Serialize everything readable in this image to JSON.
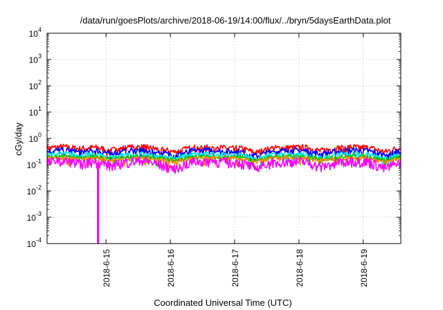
{
  "chart_data": {
    "type": "line",
    "title": "/data/run/goesPlots/archive/2018-06-19/14:00/flux/../bryn/5daysEarthData.plot",
    "xlabel": "Coordinated Universal Time (UTC)",
    "ylabel": "cGy/day",
    "y_scale": "log",
    "ylim": [
      0.0001,
      10000
    ],
    "y_ticks": [
      {
        "value": 0.0001,
        "base": "10",
        "exp": "-4"
      },
      {
        "value": 0.001,
        "base": "10",
        "exp": "-3"
      },
      {
        "value": 0.01,
        "base": "10",
        "exp": "-2"
      },
      {
        "value": 0.1,
        "base": "10",
        "exp": "-1"
      },
      {
        "value": 1,
        "base": "10",
        "exp": "0"
      },
      {
        "value": 10,
        "base": "10",
        "exp": "1"
      },
      {
        "value": 100,
        "base": "10",
        "exp": "2"
      },
      {
        "value": 1000,
        "base": "10",
        "exp": "3"
      },
      {
        "value": 10000,
        "base": "10",
        "exp": "4"
      }
    ],
    "xlim": [
      "2018-06-14 02:00",
      "2018-06-19 14:00"
    ],
    "x_ticks": [
      {
        "value": "2018-06-15 00:00",
        "label": "2018-6-15"
      },
      {
        "value": "2018-06-16 00:00",
        "label": "2018-6-16"
      },
      {
        "value": "2018-06-17 00:00",
        "label": "2018-6-17"
      },
      {
        "value": "2018-06-18 00:00",
        "label": "2018-6-18"
      },
      {
        "value": "2018-06-19 00:00",
        "label": "2018-6-19"
      }
    ],
    "grid": true,
    "series": [
      {
        "color": "#ff0000",
        "level": 0.4,
        "spread": 0.3,
        "x": [
          "2018-06-14 02:00",
          "2018-06-14 08:00",
          "2018-06-14 14:00",
          "2018-06-14 20:00",
          "2018-06-15 02:00",
          "2018-06-15 08:00",
          "2018-06-15 14:00",
          "2018-06-15 20:00",
          "2018-06-16 02:00",
          "2018-06-16 08:00",
          "2018-06-16 14:00",
          "2018-06-16 20:00",
          "2018-06-17 02:00",
          "2018-06-17 08:00",
          "2018-06-17 14:00",
          "2018-06-17 20:00",
          "2018-06-18 02:00",
          "2018-06-18 08:00",
          "2018-06-18 14:00",
          "2018-06-18 20:00",
          "2018-06-19 02:00",
          "2018-06-19 08:00",
          "2018-06-19 14:00"
        ],
        "values": [
          0.42,
          0.48,
          0.4,
          0.45,
          0.35,
          0.44,
          0.47,
          0.38,
          0.3,
          0.44,
          0.46,
          0.43,
          0.42,
          0.28,
          0.42,
          0.44,
          0.45,
          0.33,
          0.42,
          0.47,
          0.44,
          0.3,
          0.45
        ]
      },
      {
        "color": "#0000ff",
        "level": 0.3,
        "spread": 0.3,
        "x": [
          "2018-06-14 02:00",
          "2018-06-14 08:00",
          "2018-06-14 14:00",
          "2018-06-14 20:00",
          "2018-06-15 02:00",
          "2018-06-15 08:00",
          "2018-06-15 14:00",
          "2018-06-15 20:00",
          "2018-06-16 02:00",
          "2018-06-16 08:00",
          "2018-06-16 14:00",
          "2018-06-16 20:00",
          "2018-06-17 02:00",
          "2018-06-17 08:00",
          "2018-06-17 14:00",
          "2018-06-17 20:00",
          "2018-06-18 02:00",
          "2018-06-18 08:00",
          "2018-06-18 14:00",
          "2018-06-18 20:00",
          "2018-06-19 02:00",
          "2018-06-19 08:00",
          "2018-06-19 14:00"
        ],
        "values": [
          0.32,
          0.36,
          0.3,
          0.34,
          0.26,
          0.33,
          0.35,
          0.28,
          0.22,
          0.33,
          0.35,
          0.32,
          0.31,
          0.21,
          0.31,
          0.33,
          0.34,
          0.25,
          0.31,
          0.35,
          0.33,
          0.22,
          0.34
        ]
      },
      {
        "color": "#00e5ee",
        "level": 0.22,
        "spread": 0.25,
        "x": [
          "2018-06-14 02:00",
          "2018-06-14 08:00",
          "2018-06-14 14:00",
          "2018-06-14 20:00",
          "2018-06-15 02:00",
          "2018-06-15 08:00",
          "2018-06-15 14:00",
          "2018-06-15 20:00",
          "2018-06-16 02:00",
          "2018-06-16 08:00",
          "2018-06-16 14:00",
          "2018-06-16 20:00",
          "2018-06-17 02:00",
          "2018-06-17 08:00",
          "2018-06-17 14:00",
          "2018-06-17 20:00",
          "2018-06-18 02:00",
          "2018-06-18 08:00",
          "2018-06-18 14:00",
          "2018-06-18 20:00",
          "2018-06-19 02:00",
          "2018-06-19 08:00",
          "2018-06-19 14:00"
        ],
        "values": [
          0.23,
          0.26,
          0.22,
          0.25,
          0.19,
          0.24,
          0.25,
          0.2,
          0.17,
          0.24,
          0.25,
          0.23,
          0.23,
          0.16,
          0.23,
          0.24,
          0.25,
          0.18,
          0.23,
          0.26,
          0.24,
          0.16,
          0.25
        ]
      },
      {
        "color": "#00bb00",
        "level": 0.19,
        "spread": 0.2,
        "x": [
          "2018-06-14 02:00",
          "2018-06-14 08:00",
          "2018-06-14 14:00",
          "2018-06-14 20:00",
          "2018-06-15 02:00",
          "2018-06-15 08:00",
          "2018-06-15 14:00",
          "2018-06-15 20:00",
          "2018-06-16 02:00",
          "2018-06-16 08:00",
          "2018-06-16 14:00",
          "2018-06-16 20:00",
          "2018-06-17 02:00",
          "2018-06-17 08:00",
          "2018-06-17 14:00",
          "2018-06-17 20:00",
          "2018-06-18 02:00",
          "2018-06-18 08:00",
          "2018-06-18 14:00",
          "2018-06-18 20:00",
          "2018-06-19 02:00",
          "2018-06-19 08:00",
          "2018-06-19 14:00"
        ],
        "values": [
          0.19,
          0.21,
          0.18,
          0.2,
          0.16,
          0.19,
          0.2,
          0.17,
          0.15,
          0.19,
          0.2,
          0.19,
          0.19,
          0.14,
          0.19,
          0.2,
          0.2,
          0.16,
          0.19,
          0.21,
          0.2,
          0.14,
          0.2
        ]
      },
      {
        "color": "#ff8800",
        "level": 0.17,
        "spread": 0.2,
        "x": [
          "2018-06-14 02:00",
          "2018-06-14 08:00",
          "2018-06-14 14:00",
          "2018-06-14 20:00",
          "2018-06-15 02:00",
          "2018-06-15 08:00",
          "2018-06-15 14:00",
          "2018-06-15 20:00",
          "2018-06-16 02:00",
          "2018-06-16 08:00",
          "2018-06-16 14:00",
          "2018-06-16 20:00",
          "2018-06-17 02:00",
          "2018-06-17 08:00",
          "2018-06-17 14:00",
          "2018-06-17 20:00",
          "2018-06-18 02:00",
          "2018-06-18 08:00",
          "2018-06-18 14:00",
          "2018-06-18 20:00",
          "2018-06-19 02:00",
          "2018-06-19 08:00",
          "2018-06-19 14:00"
        ],
        "values": [
          0.17,
          0.18,
          0.16,
          0.18,
          0.14,
          0.17,
          0.18,
          0.15,
          0.13,
          0.17,
          0.18,
          0.17,
          0.17,
          0.12,
          0.17,
          0.18,
          0.18,
          0.14,
          0.17,
          0.18,
          0.18,
          0.12,
          0.18
        ]
      },
      {
        "color": "#ff00ff",
        "level": 0.14,
        "spread": 0.45,
        "x": [
          "2018-06-14 02:00",
          "2018-06-14 08:00",
          "2018-06-14 14:00",
          "2018-06-14 20:00",
          "2018-06-15 02:00",
          "2018-06-15 08:00",
          "2018-06-15 14:00",
          "2018-06-15 20:00",
          "2018-06-16 02:00",
          "2018-06-16 08:00",
          "2018-06-16 14:00",
          "2018-06-16 20:00",
          "2018-06-17 02:00",
          "2018-06-17 08:00",
          "2018-06-17 14:00",
          "2018-06-17 20:00",
          "2018-06-18 02:00",
          "2018-06-18 08:00",
          "2018-06-18 14:00",
          "2018-06-18 20:00",
          "2018-06-19 02:00",
          "2018-06-19 08:00",
          "2018-06-19 14:00"
        ],
        "values": [
          0.12,
          0.14,
          0.11,
          0.13,
          0.09,
          0.13,
          0.14,
          0.1,
          0.07,
          0.13,
          0.14,
          0.13,
          0.12,
          0.07,
          0.12,
          0.13,
          0.13,
          0.08,
          0.12,
          0.14,
          0.13,
          0.07,
          0.12
        ]
      }
    ],
    "dropout": {
      "color": "#ff00ff",
      "x": "2018-06-14 21:00",
      "value": 0.0001
    }
  }
}
